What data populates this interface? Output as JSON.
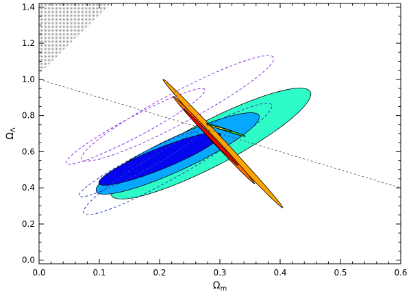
{
  "chart_data": {
    "type": "contour",
    "xlabel": "Ω",
    "xlabel_sub": "m",
    "ylabel": "Ω",
    "ylabel_sub": "Λ",
    "xlim": [
      0.0,
      0.6
    ],
    "ylim": [
      -0.02,
      1.42
    ],
    "x_ticks": [
      "0.0",
      "0.1",
      "0.2",
      "0.3",
      "0.4",
      "0.5",
      "0.6"
    ],
    "y_ticks": [
      "0.0",
      "0.2",
      "0.4",
      "0.6",
      "0.8",
      "1.0",
      "1.2",
      "1.4"
    ],
    "grid": false,
    "excluded_region": {
      "fill": "dotted gray",
      "corner": [
        [
          0.0,
          1.03
        ],
        [
          0.0,
          1.42
        ],
        [
          0.12,
          1.42
        ]
      ]
    },
    "reference_line": {
      "style": "dashed",
      "color": "#555555",
      "points": [
        [
          0.0,
          1.0
        ],
        [
          0.6,
          0.4
        ]
      ]
    },
    "series": [
      {
        "group": "wide",
        "ellipses": [
          {
            "center": [
              0.285,
              0.645
            ],
            "semi_major": 0.3,
            "semi_minor": 0.2,
            "angle_deg": 27.5,
            "fill": "#2efcc8"
          },
          {
            "center": [
              0.23,
              0.59
            ],
            "semi_major": 0.24,
            "semi_minor": 0.147,
            "angle_deg": 25,
            "fill": "#07a9ff"
          },
          {
            "center": [
              0.2,
              0.56
            ],
            "semi_major": 0.175,
            "semi_minor": 0.093,
            "angle_deg": 22,
            "fill": "#0606ee"
          }
        ]
      },
      {
        "group": "narrow",
        "ellipses": [
          {
            "center": [
              0.305,
              0.645
            ],
            "semi_major": 0.235,
            "semi_minor": 0.028,
            "angle_deg": -47,
            "fill": "#ffa500"
          },
          {
            "center": [
              0.29,
              0.665
            ],
            "semi_major": 0.16,
            "semi_minor": 0.021,
            "angle_deg": -47,
            "fill": "#ff6a00"
          },
          {
            "center": [
              0.285,
              0.68
            ],
            "semi_major": 0.105,
            "semi_minor": 0.014,
            "angle_deg": -46,
            "fill": "#ff0000"
          },
          {
            "center": [
              0.31,
              0.72
            ],
            "semi_major": 0.055,
            "semi_minor": 0.01,
            "angle_deg": -18,
            "fill": "#22cc22"
          },
          {
            "center": [
              0.3,
              0.73
            ],
            "semi_major": 0.032,
            "semi_minor": 0.006,
            "angle_deg": -15,
            "fill": "#ffff33"
          }
        ]
      },
      {
        "group": "dashed-purple",
        "ellipses": [
          {
            "center": [
              0.23,
              0.84
            ],
            "semi_major": 0.29,
            "semi_minor": 0.14,
            "angle_deg": 28,
            "stroke": "#8a2be2"
          },
          {
            "center": [
              0.16,
              0.74
            ],
            "semi_major": 0.21,
            "semi_minor": 0.09,
            "angle_deg": 28,
            "stroke": "#8a2be2"
          }
        ]
      },
      {
        "group": "dashed-blue",
        "ellipses": [
          {
            "center": [
              0.23,
              0.56
            ],
            "semi_major": 0.29,
            "semi_minor": 0.135,
            "angle_deg": 30,
            "stroke": "#1f3fbf"
          },
          {
            "center": [
              0.165,
              0.53
            ],
            "semi_major": 0.18,
            "semi_minor": 0.075,
            "angle_deg": 28,
            "stroke": "#1f3fbf"
          }
        ]
      }
    ]
  }
}
